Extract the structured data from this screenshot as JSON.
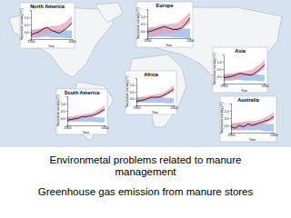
{
  "slide": {
    "title": "Environmetal problems related to manure management",
    "subtitle": "Greenhouse gas emission from manure stores"
  },
  "chart_data": [
    {
      "type": "line",
      "title": "North America",
      "x": [
        1900,
        1910,
        1920,
        1930,
        1940,
        1950,
        1960,
        1970,
        1980,
        1990,
        2000
      ],
      "xlim": [
        1900,
        2000
      ],
      "xticks": [
        1900,
        2000
      ],
      "ylim": [
        -0.5,
        1.5
      ],
      "yticks": [
        {
          "value": 0,
          "label": "0.0"
        },
        0.5,
        {
          "value": 1,
          "label": "1.0"
        }
      ],
      "x_label": "Year",
      "y_label": "Temperature anomaly (°C)",
      "series": [
        {
          "color": "#000000",
          "values": [
            -0.2,
            -0.1,
            0.0,
            0.2,
            0.3,
            0.1,
            0.0,
            -0.1,
            0.1,
            0.3,
            0.6
          ]
        }
      ],
      "bands": [
        {
          "color": "#8fb0e0",
          "lower": [
            -0.4,
            -0.4,
            -0.4,
            -0.35,
            -0.35,
            -0.4,
            -0.4,
            -0.4,
            -0.4,
            -0.45,
            -0.45
          ],
          "upper": [
            0.15,
            0.15,
            0.15,
            0.2,
            0.2,
            0.15,
            0.15,
            0.15,
            0.15,
            0.1,
            0.1
          ]
        },
        {
          "color": "#e8a0b8",
          "lower": [
            -0.4,
            -0.35,
            -0.3,
            -0.2,
            -0.15,
            -0.1,
            -0.1,
            -0.05,
            0.1,
            0.3,
            0.5
          ],
          "upper": [
            0.1,
            0.15,
            0.2,
            0.3,
            0.35,
            0.4,
            0.4,
            0.45,
            0.6,
            0.8,
            1.1
          ]
        }
      ]
    },
    {
      "type": "line",
      "title": "Europe",
      "x": [
        1900,
        1910,
        1920,
        1930,
        1940,
        1950,
        1960,
        1970,
        1980,
        1990,
        2000
      ],
      "xlim": [
        1900,
        2000
      ],
      "xticks": [
        1900,
        2000
      ],
      "ylim": [
        -0.5,
        1.5
      ],
      "yticks": [
        {
          "value": 0,
          "label": "0.0"
        },
        0.5,
        {
          "value": 1,
          "label": "1.0"
        }
      ],
      "x_label": "Year",
      "y_label": "Temperature anomaly (°C)",
      "series": [
        {
          "color": "#000000",
          "values": [
            -0.1,
            0.0,
            0.1,
            0.2,
            0.3,
            0.2,
            0.1,
            0.1,
            0.2,
            0.5,
            0.9
          ]
        }
      ],
      "bands": [
        {
          "color": "#8fb0e0",
          "lower": [
            -0.45,
            -0.45,
            -0.4,
            -0.4,
            -0.4,
            -0.4,
            -0.45,
            -0.45,
            -0.45,
            -0.5,
            -0.5
          ],
          "upper": [
            0.2,
            0.2,
            0.25,
            0.25,
            0.25,
            0.2,
            0.2,
            0.2,
            0.2,
            0.15,
            0.15
          ]
        },
        {
          "color": "#e8a0b8",
          "lower": [
            -0.4,
            -0.35,
            -0.3,
            -0.25,
            -0.2,
            -0.15,
            -0.15,
            -0.1,
            0.05,
            0.3,
            0.55
          ],
          "upper": [
            0.2,
            0.25,
            0.3,
            0.4,
            0.45,
            0.45,
            0.5,
            0.55,
            0.75,
            1.0,
            1.3
          ]
        }
      ]
    },
    {
      "type": "line",
      "title": "Asia",
      "x": [
        1900,
        1910,
        1920,
        1930,
        1940,
        1950,
        1960,
        1970,
        1980,
        1990,
        2000
      ],
      "xlim": [
        1900,
        2000
      ],
      "xticks": [
        1900,
        2000
      ],
      "ylim": [
        -0.5,
        1.5
      ],
      "yticks": [
        {
          "value": 0,
          "label": "0.0"
        },
        0.5,
        {
          "value": 1,
          "label": "1.0"
        }
      ],
      "x_label": "Year",
      "y_label": "Temperature anomaly (°C)",
      "series": [
        {
          "color": "#000000",
          "values": [
            -0.1,
            -0.05,
            0.0,
            0.1,
            0.2,
            0.15,
            0.1,
            0.1,
            0.3,
            0.5,
            0.8
          ]
        }
      ],
      "bands": [
        {
          "color": "#8fb0e0",
          "lower": [
            -0.3,
            -0.3,
            -0.3,
            -0.25,
            -0.25,
            -0.3,
            -0.3,
            -0.3,
            -0.3,
            -0.35,
            -0.35
          ],
          "upper": [
            0.15,
            0.15,
            0.15,
            0.2,
            0.2,
            0.15,
            0.15,
            0.15,
            0.15,
            0.1,
            0.1
          ]
        },
        {
          "color": "#e8a0b8",
          "lower": [
            -0.3,
            -0.25,
            -0.2,
            -0.15,
            -0.1,
            -0.05,
            0.0,
            0.0,
            0.15,
            0.35,
            0.55
          ],
          "upper": [
            0.1,
            0.15,
            0.2,
            0.25,
            0.3,
            0.35,
            0.4,
            0.45,
            0.65,
            0.85,
            1.15
          ]
        }
      ]
    },
    {
      "type": "line",
      "title": "Africa",
      "x": [
        1900,
        1910,
        1920,
        1930,
        1940,
        1950,
        1960,
        1970,
        1980,
        1990,
        2000
      ],
      "xlim": [
        1900,
        2000
      ],
      "xticks": [
        1900,
        2000
      ],
      "ylim": [
        -0.5,
        1.5
      ],
      "yticks": [
        {
          "value": 0,
          "label": "0.0"
        },
        0.5,
        {
          "value": 1,
          "label": "1.0"
        }
      ],
      "x_label": "Year",
      "y_label": "Temperature anomaly (°C)",
      "series": [
        {
          "color": "#000000",
          "values": [
            -0.2,
            -0.15,
            -0.1,
            0.0,
            0.1,
            0.1,
            0.1,
            0.2,
            0.35,
            0.5,
            0.7
          ]
        }
      ],
      "bands": [
        {
          "color": "#8fb0e0",
          "lower": [
            -0.3,
            -0.3,
            -0.3,
            -0.3,
            -0.3,
            -0.3,
            -0.3,
            -0.3,
            -0.35,
            -0.35,
            -0.35
          ],
          "upper": [
            0.1,
            0.1,
            0.1,
            0.1,
            0.1,
            0.1,
            0.1,
            0.1,
            0.05,
            0.05,
            0.05
          ]
        },
        {
          "color": "#e8a0b8",
          "lower": [
            -0.3,
            -0.25,
            -0.2,
            -0.15,
            -0.1,
            -0.05,
            0.0,
            0.05,
            0.2,
            0.35,
            0.5
          ],
          "upper": [
            0.05,
            0.1,
            0.15,
            0.2,
            0.25,
            0.3,
            0.35,
            0.4,
            0.55,
            0.75,
            1.0
          ]
        }
      ]
    },
    {
      "type": "line",
      "title": "South America",
      "x": [
        1900,
        1910,
        1920,
        1930,
        1940,
        1950,
        1960,
        1970,
        1980,
        1990,
        2000
      ],
      "xlim": [
        1900,
        2000
      ],
      "xticks": [
        1900,
        2000
      ],
      "ylim": [
        -0.5,
        1.5
      ],
      "yticks": [
        {
          "value": 0,
          "label": "0.0"
        },
        0.5,
        {
          "value": 1,
          "label": "1.0"
        }
      ],
      "x_label": "Year",
      "y_label": "Temperature anomaly (°C)",
      "series": [
        {
          "color": "#000000",
          "values": [
            -0.15,
            -0.1,
            -0.05,
            0.0,
            0.1,
            0.1,
            0.15,
            0.2,
            0.3,
            0.45,
            0.6
          ]
        }
      ],
      "bands": [
        {
          "color": "#8fb0e0",
          "lower": [
            -0.25,
            -0.25,
            -0.25,
            -0.25,
            -0.25,
            -0.25,
            -0.25,
            -0.25,
            -0.3,
            -0.3,
            -0.3
          ],
          "upper": [
            0.1,
            0.1,
            0.1,
            0.1,
            0.1,
            0.1,
            0.1,
            0.1,
            0.05,
            0.05,
            0.05
          ]
        },
        {
          "color": "#e8a0b8",
          "lower": [
            -0.25,
            -0.2,
            -0.15,
            -0.1,
            -0.05,
            0.0,
            0.05,
            0.1,
            0.2,
            0.3,
            0.45
          ],
          "upper": [
            0.05,
            0.1,
            0.15,
            0.2,
            0.25,
            0.3,
            0.35,
            0.4,
            0.55,
            0.7,
            0.9
          ]
        }
      ]
    },
    {
      "type": "line",
      "title": "Australia",
      "x": [
        1900,
        1910,
        1920,
        1930,
        1940,
        1950,
        1960,
        1970,
        1980,
        1990,
        2000
      ],
      "xlim": [
        1900,
        2000
      ],
      "xticks": [
        1900,
        2000
      ],
      "ylim": [
        -0.5,
        1.5
      ],
      "yticks": [
        {
          "value": 0,
          "label": "0.0"
        },
        0.5,
        {
          "value": 1,
          "label": "1.0"
        }
      ],
      "x_label": "Year",
      "y_label": "Temperature anomaly (°C)",
      "series": [
        {
          "color": "#000000",
          "values": [
            -0.1,
            -0.2,
            0.0,
            -0.1,
            0.1,
            0.0,
            0.1,
            0.2,
            0.3,
            0.4,
            0.6
          ]
        }
      ],
      "bands": [
        {
          "color": "#8fb0e0",
          "lower": [
            -0.35,
            -0.35,
            -0.35,
            -0.35,
            -0.35,
            -0.35,
            -0.35,
            -0.35,
            -0.4,
            -0.4,
            -0.4
          ],
          "upper": [
            0.15,
            0.15,
            0.15,
            0.15,
            0.15,
            0.15,
            0.15,
            0.15,
            0.1,
            0.1,
            0.1
          ]
        },
        {
          "color": "#e8a0b8",
          "lower": [
            -0.35,
            -0.3,
            -0.25,
            -0.2,
            -0.15,
            -0.1,
            -0.05,
            0.0,
            0.1,
            0.25,
            0.4
          ],
          "upper": [
            0.1,
            0.15,
            0.2,
            0.25,
            0.3,
            0.3,
            0.35,
            0.4,
            0.55,
            0.7,
            0.9
          ]
        }
      ]
    }
  ]
}
